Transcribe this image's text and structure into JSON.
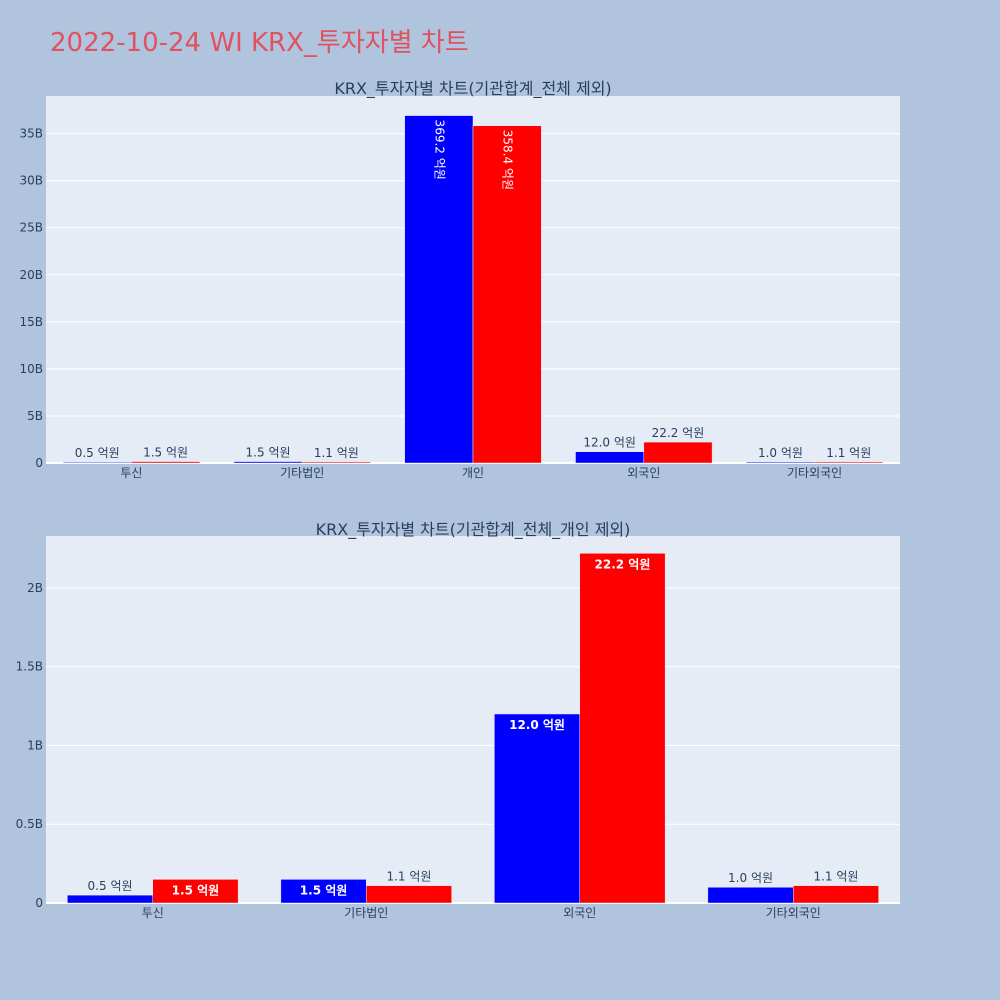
{
  "title": "2022-10-24 WI KRX_투자자별 차트",
  "colors": {
    "page_bg": "#b0c4de",
    "plot_bg": "#e5ecf6",
    "grid": "#ffffff",
    "text": "#2a3f5f",
    "title": "#e0525f",
    "series_1": "#0000ff",
    "series_2": "#ff0000"
  },
  "chart_data": [
    {
      "type": "bar",
      "title": "KRX_투자자별 차트(기관합계_전체 제외)",
      "categories": [
        "투신",
        "기타법인",
        "개인",
        "외국인",
        "기타외국인"
      ],
      "ylim": [
        0,
        39
      ],
      "yticks": [
        0,
        5,
        10,
        15,
        20,
        25,
        30,
        35
      ],
      "ytick_labels": [
        "0",
        "5B",
        "10B",
        "15B",
        "20B",
        "25B",
        "30B",
        "35B"
      ],
      "grid": true,
      "series": [
        {
          "values": [
            0.05,
            0.15,
            36.92,
            1.2,
            0.1
          ],
          "labels": [
            "0.5 억원",
            "1.5 억원",
            "369.2 억원",
            "12.0 억원",
            "1.0 억원"
          ],
          "label_positions": [
            "outside",
            "outside",
            "inside-vertical",
            "outside",
            "outside"
          ]
        },
        {
          "values": [
            0.15,
            0.11,
            35.84,
            2.22,
            0.11
          ],
          "labels": [
            "1.5 억원",
            "1.1 억원",
            "358.4 억원",
            "22.2 억원",
            "1.1 억원"
          ],
          "label_positions": [
            "outside",
            "outside",
            "inside-vertical",
            "outside",
            "outside"
          ]
        }
      ]
    },
    {
      "type": "bar",
      "title": "KRX_투자자별 차트(기관합계_전체_개인 제외)",
      "categories": [
        "투신",
        "기타법인",
        "외국인",
        "기타외국인"
      ],
      "ylim": [
        0,
        2.33
      ],
      "yticks": [
        0,
        0.5,
        1,
        1.5,
        2
      ],
      "ytick_labels": [
        "0",
        "0.5B",
        "1B",
        "1.5B",
        "2B"
      ],
      "grid": true,
      "series": [
        {
          "values": [
            0.05,
            0.15,
            1.2,
            0.1
          ],
          "labels": [
            "0.5 억원",
            "1.5 억원",
            "12.0 억원",
            "1.0 억원"
          ],
          "label_positions": [
            "outside",
            "inside",
            "inside",
            "outside"
          ]
        },
        {
          "values": [
            0.15,
            0.11,
            2.22,
            0.11
          ],
          "labels": [
            "1.5 억원",
            "1.1 억원",
            "22.2 억원",
            "1.1 억원"
          ],
          "label_positions": [
            "inside",
            "outside",
            "inside",
            "outside"
          ]
        }
      ]
    }
  ]
}
